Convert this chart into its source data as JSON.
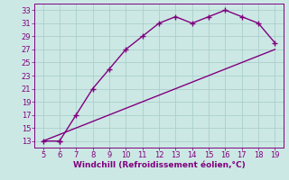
{
  "upper_x": [
    5,
    6,
    6,
    7,
    8,
    9,
    10,
    11,
    12,
    13,
    14,
    15,
    16,
    17,
    18,
    19
  ],
  "upper_y": [
    13,
    13,
    13,
    17,
    21,
    24,
    27,
    29,
    31,
    32,
    31,
    32,
    33,
    32,
    31,
    28
  ],
  "lower_x": [
    5,
    6,
    7,
    8,
    9,
    10,
    11,
    12,
    13,
    14,
    15,
    16,
    17,
    18,
    19
  ],
  "lower_y": [
    13,
    14,
    15,
    16,
    17,
    18,
    19,
    20,
    21,
    22,
    23,
    24,
    25,
    26,
    27
  ],
  "line_color": "#800080",
  "bg_color": "#cce8e4",
  "grid_color": "#aacfcc",
  "xlabel": "Windchill (Refroidissement éolien,°C)",
  "xlim": [
    4.5,
    19.5
  ],
  "ylim": [
    12,
    34
  ],
  "xticks": [
    5,
    6,
    7,
    8,
    9,
    10,
    11,
    12,
    13,
    14,
    15,
    16,
    17,
    18,
    19
  ],
  "yticks": [
    13,
    15,
    17,
    19,
    21,
    23,
    25,
    27,
    29,
    31,
    33
  ],
  "marker": "+",
  "marker_size": 4,
  "line_width": 1.0,
  "font_color": "#800080",
  "tick_font_size": 6,
  "xlabel_font_size": 6.5
}
